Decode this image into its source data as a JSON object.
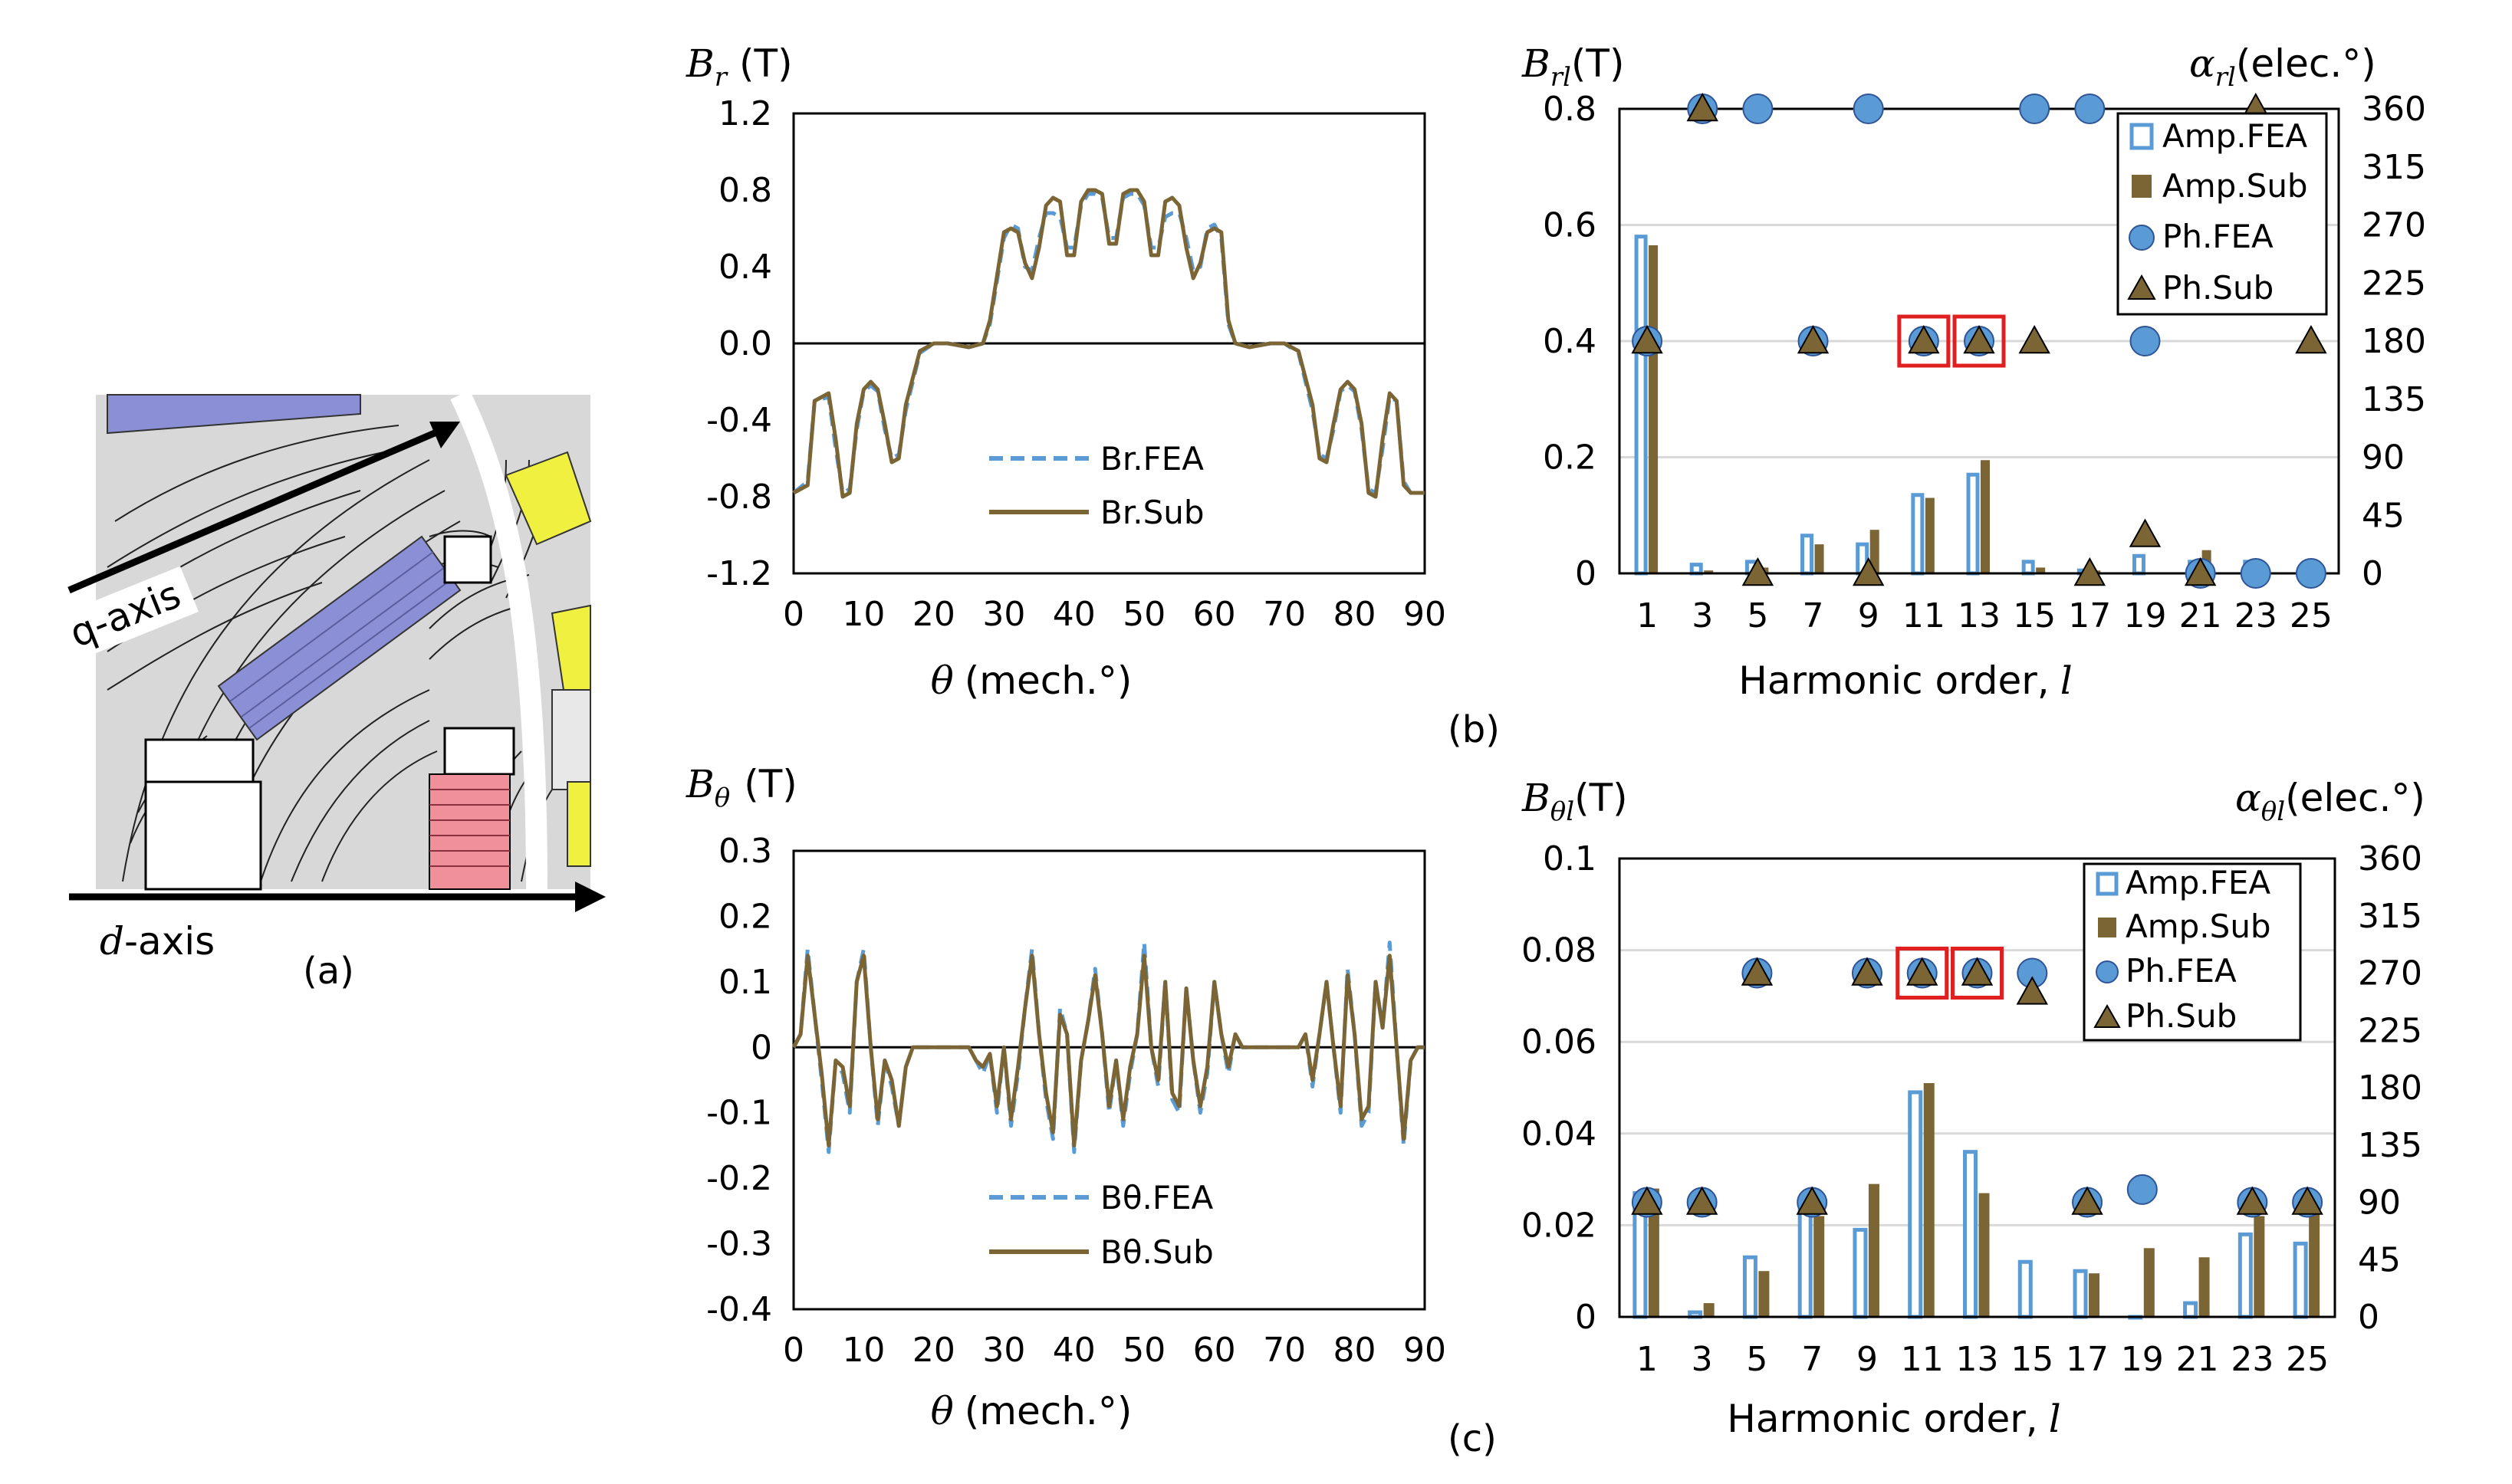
{
  "panel_labels": {
    "a": "(a)",
    "b": "(b)",
    "c": "(c)"
  },
  "diagram_a": {
    "q_axis": "q-axis",
    "d_axis_var": "d",
    "d_axis_suffix": "-axis"
  },
  "colors": {
    "fea": "#5b9bd5",
    "sub": "#7b6535",
    "box": "#e02020",
    "magnet": "#8b8fd6",
    "yellow": "#f0f040",
    "pink": "#f0909a"
  },
  "chart_data": [
    {
      "id": "br",
      "type": "line",
      "y_label_var": "B",
      "y_label_sub": "r",
      "y_label_unit": "(T)",
      "x_label_var": "θ",
      "x_label_unit": "(mech.°)",
      "x_ticks": [
        "0",
        "10",
        "20",
        "30",
        "40",
        "50",
        "60",
        "70",
        "80",
        "90"
      ],
      "y_ticks": [
        "1.2",
        "0.8",
        "0.4",
        "0.0",
        "-0.4",
        "-0.8",
        "-1.2"
      ],
      "xlim": [
        0,
        90
      ],
      "ylim": [
        -1.2,
        1.2
      ],
      "legend_position": "lower-center",
      "series": [
        {
          "name": "Br.FEA",
          "style": "dashed",
          "x": [
            0,
            2,
            3,
            5,
            6,
            7,
            8,
            9,
            10,
            11,
            12,
            13,
            14,
            15,
            16,
            18,
            20,
            22,
            25,
            27,
            28,
            30,
            31,
            32,
            33,
            34,
            35,
            36,
            37,
            38,
            39,
            40,
            41,
            42,
            43,
            44,
            45,
            46,
            47,
            48,
            49,
            50,
            51,
            52,
            53,
            54,
            55,
            56,
            57,
            58,
            59,
            60,
            61,
            62,
            63,
            65,
            68,
            70,
            72,
            74,
            75,
            76,
            77,
            78,
            79,
            80,
            81,
            82,
            83,
            84,
            85,
            86,
            87,
            88,
            90
          ],
          "y": [
            -0.78,
            -0.72,
            -0.3,
            -0.28,
            -0.55,
            -0.78,
            -0.76,
            -0.45,
            -0.25,
            -0.22,
            -0.25,
            -0.45,
            -0.6,
            -0.58,
            -0.35,
            -0.05,
            0.0,
            0.0,
            -0.02,
            0.0,
            0.1,
            0.55,
            0.62,
            0.6,
            0.4,
            0.38,
            0.55,
            0.68,
            0.68,
            0.66,
            0.5,
            0.5,
            0.72,
            0.78,
            0.78,
            0.76,
            0.55,
            0.55,
            0.76,
            0.78,
            0.78,
            0.72,
            0.5,
            0.5,
            0.66,
            0.68,
            0.68,
            0.55,
            0.38,
            0.4,
            0.6,
            0.62,
            0.55,
            0.1,
            0.0,
            -0.02,
            0.0,
            0.0,
            -0.05,
            -0.35,
            -0.58,
            -0.6,
            -0.45,
            -0.25,
            -0.22,
            -0.25,
            -0.45,
            -0.76,
            -0.78,
            -0.55,
            -0.28,
            -0.3,
            -0.72,
            -0.78,
            -0.78
          ]
        },
        {
          "name": "Br.Sub",
          "style": "solid",
          "x": [
            0,
            2,
            3,
            5,
            6,
            7,
            8,
            9,
            10,
            11,
            12,
            13,
            14,
            15,
            16,
            18,
            20,
            22,
            25,
            27,
            28,
            30,
            31,
            32,
            33,
            34,
            35,
            36,
            37,
            38,
            39,
            40,
            41,
            42,
            43,
            44,
            45,
            46,
            47,
            48,
            49,
            50,
            51,
            52,
            53,
            54,
            55,
            56,
            57,
            58,
            59,
            60,
            61,
            62,
            63,
            65,
            68,
            70,
            72,
            74,
            75,
            76,
            77,
            78,
            79,
            80,
            81,
            82,
            83,
            84,
            85,
            86,
            87,
            88,
            90
          ],
          "y": [
            -0.78,
            -0.74,
            -0.3,
            -0.26,
            -0.5,
            -0.8,
            -0.78,
            -0.42,
            -0.24,
            -0.2,
            -0.24,
            -0.42,
            -0.62,
            -0.6,
            -0.32,
            -0.04,
            0.0,
            0.0,
            -0.02,
            0.0,
            0.12,
            0.58,
            0.6,
            0.58,
            0.42,
            0.34,
            0.5,
            0.72,
            0.76,
            0.74,
            0.46,
            0.46,
            0.74,
            0.8,
            0.8,
            0.78,
            0.52,
            0.52,
            0.78,
            0.8,
            0.8,
            0.74,
            0.46,
            0.46,
            0.74,
            0.76,
            0.72,
            0.5,
            0.34,
            0.42,
            0.58,
            0.6,
            0.58,
            0.12,
            0.0,
            -0.02,
            0.0,
            0.0,
            -0.04,
            -0.32,
            -0.6,
            -0.62,
            -0.42,
            -0.24,
            -0.2,
            -0.24,
            -0.42,
            -0.78,
            -0.8,
            -0.5,
            -0.26,
            -0.3,
            -0.74,
            -0.78,
            -0.78
          ]
        }
      ]
    },
    {
      "id": "bt",
      "type": "line",
      "y_label_var": "B",
      "y_label_sub": "θ",
      "y_label_unit": "(T)",
      "x_label_var": "θ",
      "x_label_unit": "(mech.°)",
      "x_ticks": [
        "0",
        "10",
        "20",
        "30",
        "40",
        "50",
        "60",
        "70",
        "80",
        "90"
      ],
      "y_ticks": [
        "0.3",
        "0.2",
        "0.1",
        "0",
        "-0.1",
        "-0.2",
        "-0.3",
        "-0.4"
      ],
      "xlim": [
        0,
        90
      ],
      "ylim": [
        -0.4,
        0.3
      ],
      "legend_position": "lower-center",
      "series": [
        {
          "name": "Bθ.FEA",
          "style": "dashed",
          "x": [
            0,
            1,
            2,
            3,
            4,
            5,
            6,
            7,
            8,
            9,
            10,
            11,
            12,
            13,
            14,
            15,
            16,
            17,
            18,
            20,
            25,
            26,
            27,
            28,
            29,
            30,
            31,
            32,
            33,
            34,
            35,
            36,
            37,
            38,
            39,
            40,
            41,
            42,
            43,
            44,
            45,
            46,
            47,
            48,
            49,
            50,
            51,
            52,
            53,
            54,
            55,
            56,
            57,
            58,
            59,
            60,
            61,
            62,
            63,
            64,
            65,
            67,
            70,
            72,
            73,
            74,
            75,
            76,
            77,
            78,
            79,
            80,
            81,
            82,
            83,
            84,
            85,
            86,
            87,
            88,
            89,
            90
          ],
          "y": [
            0,
            0.02,
            0.15,
            0.05,
            -0.05,
            -0.16,
            -0.02,
            -0.04,
            -0.1,
            0.1,
            0.15,
            0.0,
            -0.12,
            -0.02,
            -0.06,
            -0.12,
            -0.03,
            0.0,
            0.0,
            0.0,
            0.0,
            -0.02,
            -0.04,
            -0.01,
            -0.1,
            0.0,
            -0.12,
            -0.04,
            0.06,
            0.15,
            0.02,
            -0.08,
            -0.14,
            0.06,
            0.02,
            -0.16,
            -0.02,
            0.04,
            0.12,
            0.02,
            -0.1,
            -0.02,
            -0.12,
            -0.04,
            0.02,
            0.16,
            0.0,
            -0.06,
            0.1,
            -0.08,
            -0.1,
            0.09,
            -0.02,
            -0.1,
            -0.04,
            0.1,
            0.02,
            -0.04,
            0.02,
            0.0,
            0.0,
            0.0,
            0.0,
            0.0,
            0.02,
            -0.06,
            0.02,
            0.1,
            0.0,
            -0.1,
            0.12,
            0.02,
            -0.12,
            -0.1,
            0.1,
            0.03,
            0.16,
            0.0,
            -0.15,
            -0.02,
            0.0,
            0.0
          ]
        },
        {
          "name": "Bθ.Sub",
          "style": "solid",
          "x": [
            0,
            1,
            2,
            3,
            4,
            5,
            6,
            7,
            8,
            9,
            10,
            11,
            12,
            13,
            14,
            15,
            16,
            17,
            18,
            20,
            25,
            26,
            27,
            28,
            29,
            30,
            31,
            32,
            33,
            34,
            35,
            36,
            37,
            38,
            39,
            40,
            41,
            42,
            43,
            44,
            45,
            46,
            47,
            48,
            49,
            50,
            51,
            52,
            53,
            54,
            55,
            56,
            57,
            58,
            59,
            60,
            61,
            62,
            63,
            64,
            65,
            67,
            70,
            72,
            73,
            74,
            75,
            76,
            77,
            78,
            79,
            80,
            81,
            82,
            83,
            84,
            85,
            86,
            87,
            88,
            89,
            90
          ],
          "y": [
            0,
            0.02,
            0.14,
            0.05,
            -0.04,
            -0.15,
            -0.02,
            -0.03,
            -0.09,
            0.1,
            0.14,
            0.0,
            -0.11,
            -0.02,
            -0.05,
            -0.12,
            -0.03,
            0.0,
            0.0,
            0.0,
            0.0,
            -0.02,
            -0.03,
            -0.01,
            -0.09,
            0.0,
            -0.11,
            -0.03,
            0.06,
            0.14,
            0.02,
            -0.07,
            -0.13,
            0.05,
            0.02,
            -0.15,
            -0.02,
            0.04,
            0.11,
            0.02,
            -0.09,
            -0.02,
            -0.11,
            -0.03,
            0.02,
            0.14,
            0.0,
            -0.05,
            0.1,
            -0.07,
            -0.09,
            0.09,
            -0.02,
            -0.09,
            -0.03,
            0.1,
            0.02,
            -0.03,
            0.02,
            0.0,
            0.0,
            0.0,
            0.0,
            0.0,
            0.02,
            -0.05,
            0.02,
            0.1,
            0.0,
            -0.09,
            0.11,
            0.02,
            -0.11,
            -0.09,
            0.1,
            0.03,
            0.14,
            0.0,
            -0.14,
            -0.02,
            0.0,
            0.0
          ]
        }
      ]
    },
    {
      "id": "brl",
      "type": "bar+scatter",
      "y_label_var": "B",
      "y_label_sub": "rl",
      "y_label_unit": "(T)",
      "y2_label_var": "α",
      "y2_label_sub": "rl",
      "y2_label_unit": "(elec.°)",
      "x_label_text": "Harmonic order,",
      "x_label_var": "l",
      "categories": [
        "1",
        "3",
        "5",
        "7",
        "9",
        "11",
        "13",
        "15",
        "17",
        "19",
        "21",
        "23",
        "25"
      ],
      "y_ticks": [
        "0.8",
        "0.6",
        "0.4",
        "0.2",
        "0"
      ],
      "y2_ticks": [
        "360",
        "315",
        "270",
        "225",
        "180",
        "135",
        "90",
        "45",
        "0"
      ],
      "ylim": [
        0,
        0.8
      ],
      "y2lim": [
        0,
        360
      ],
      "legend_position": "top-right",
      "highlight_orders": [
        "11",
        "13"
      ],
      "series": [
        {
          "name": "Amp.FEA",
          "kind": "bar-outline",
          "axis": "left",
          "values": [
            0.58,
            0.015,
            0.02,
            0.065,
            0.05,
            0.135,
            0.17,
            0.02,
            0.005,
            0.03,
            0.02,
            0.02,
            0.005
          ]
        },
        {
          "name": "Amp.Sub",
          "kind": "bar",
          "axis": "left",
          "values": [
            0.565,
            0.005,
            0.01,
            0.05,
            0.075,
            0.13,
            0.195,
            0.01,
            0.005,
            0.0,
            0.04,
            0.0,
            0.0
          ]
        },
        {
          "name": "Ph.FEA",
          "kind": "circle",
          "axis": "right",
          "values": [
            180,
            360,
            360,
            180,
            360,
            180,
            180,
            360,
            360,
            180,
            0,
            0,
            0
          ]
        },
        {
          "name": "Ph.Sub",
          "kind": "triangle",
          "axis": "right",
          "values": [
            180,
            360,
            0,
            180,
            0,
            180,
            180,
            180,
            0,
            30,
            0,
            360,
            180
          ]
        }
      ]
    },
    {
      "id": "btl",
      "type": "bar+scatter",
      "y_label_var": "B",
      "y_label_sub": "θl",
      "y_label_unit": "(T)",
      "y2_label_var": "α",
      "y2_label_sub": "θl",
      "y2_label_unit": "(elec.°)",
      "x_label_text": "Harmonic order,",
      "x_label_var": "l",
      "categories": [
        "1",
        "3",
        "5",
        "7",
        "9",
        "11",
        "13",
        "15",
        "17",
        "19",
        "21",
        "23",
        "25"
      ],
      "y_ticks": [
        "0.1",
        "0.08",
        "0.06",
        "0.04",
        "0.02",
        "0"
      ],
      "y2_ticks": [
        "360",
        "315",
        "270",
        "225",
        "180",
        "135",
        "90",
        "45",
        "0"
      ],
      "ylim": [
        0,
        0.1
      ],
      "y2lim": [
        0,
        360
      ],
      "legend_position": "top-right",
      "highlight_orders": [
        "11",
        "13"
      ],
      "series": [
        {
          "name": "Amp.FEA",
          "kind": "bar-outline",
          "axis": "left",
          "values": [
            0.027,
            0.001,
            0.013,
            0.024,
            0.019,
            0.049,
            0.036,
            0.012,
            0.01,
            0.0,
            0.003,
            0.018,
            0.016
          ]
        },
        {
          "name": "Amp.Sub",
          "kind": "bar",
          "axis": "left",
          "values": [
            0.028,
            0.003,
            0.01,
            0.022,
            0.029,
            0.051,
            0.027,
            0.0,
            0.0095,
            0.015,
            0.013,
            0.022,
            0.026
          ]
        },
        {
          "name": "Ph.FEA",
          "kind": "circle",
          "axis": "right",
          "values": [
            90,
            90,
            270,
            90,
            270,
            270,
            270,
            270,
            90,
            100,
            null,
            90,
            90
          ]
        },
        {
          "name": "Ph.Sub",
          "kind": "triangle",
          "axis": "right",
          "values": [
            90,
            90,
            270,
            90,
            270,
            270,
            270,
            255,
            90,
            null,
            null,
            90,
            90
          ]
        }
      ]
    }
  ]
}
